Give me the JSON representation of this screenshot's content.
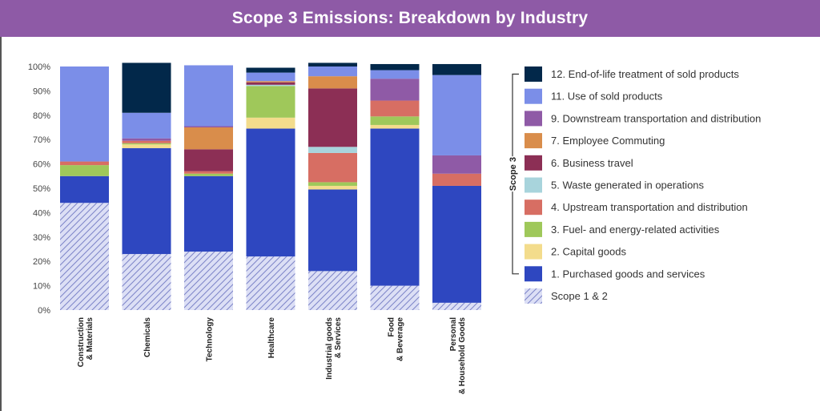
{
  "title": "Scope 3 Emissions: Breakdown by Industry",
  "colors": {
    "title_bg": "#8e5aa6",
    "title_text": "#ffffff",
    "hatch_fill": "#dcdff5",
    "hatch_line": "#7c84c8"
  },
  "chart_data": {
    "type": "bar",
    "stacked": true,
    "title": "Scope 3 Emissions: Breakdown by Industry",
    "xlabel": "",
    "ylabel": "",
    "ylim": [
      0,
      100
    ],
    "y_ticks": [
      "0%",
      "10%",
      "20%",
      "30%",
      "40%",
      "50%",
      "60%",
      "70%",
      "80%",
      "90%",
      "100%"
    ],
    "grid": false,
    "legend_position": "right",
    "legend_group_label": "Scope 3",
    "categories": [
      "Construction & Materials",
      "Chemicals",
      "Technology",
      "Healthcare",
      "Industrial goods & Services",
      "Food & Beverage",
      "Personal & Household Goods"
    ],
    "series": [
      {
        "name": "Scope 1 & 2",
        "color": "#dcdff5",
        "hatched": true,
        "values": [
          44,
          23,
          24,
          22,
          16,
          10,
          3
        ]
      },
      {
        "name": "1. Purchased goods and services",
        "color": "#2e47c0",
        "values": [
          11,
          43.5,
          31,
          52.5,
          33.5,
          64.5,
          48
        ]
      },
      {
        "name": "2. Capital goods",
        "color": "#f3dc8c",
        "values": [
          0,
          1.5,
          0,
          4.5,
          1.5,
          1.5,
          0
        ]
      },
      {
        "name": "3. Fuel- and energy-related activities",
        "color": "#9fc85a",
        "values": [
          4.5,
          0.5,
          1,
          13,
          1.5,
          3.5,
          0
        ]
      },
      {
        "name": "4. Upstream transportation and distribution",
        "color": "#d76e63",
        "values": [
          1.5,
          1,
          1,
          0,
          12,
          6.5,
          5
        ]
      },
      {
        "name": "5. Waste generated in operations",
        "color": "#a8d4dc",
        "values": [
          0,
          0,
          0,
          0.5,
          2.5,
          0,
          0
        ]
      },
      {
        "name": "6. Business travel",
        "color": "#8c2f55",
        "values": [
          0,
          0,
          9,
          1,
          24,
          0,
          0
        ]
      },
      {
        "name": "7. Employee Commuting",
        "color": "#d98d4b",
        "values": [
          0,
          0,
          9,
          0.5,
          5,
          0,
          0
        ]
      },
      {
        "name": "9. Downstream transportation and distribution",
        "color": "#8f5aa6",
        "values": [
          0,
          1,
          0.5,
          0,
          0,
          9,
          7.5
        ]
      },
      {
        "name": "11. Use of sold products",
        "color": "#7b8ee8",
        "values": [
          39,
          10.5,
          25,
          3.5,
          4,
          3.5,
          33
        ]
      },
      {
        "name": "12. End-of-life treatment of sold products",
        "color": "#02284a",
        "values": [
          0,
          20.5,
          0,
          2,
          1.5,
          2.5,
          4.5
        ]
      }
    ]
  }
}
